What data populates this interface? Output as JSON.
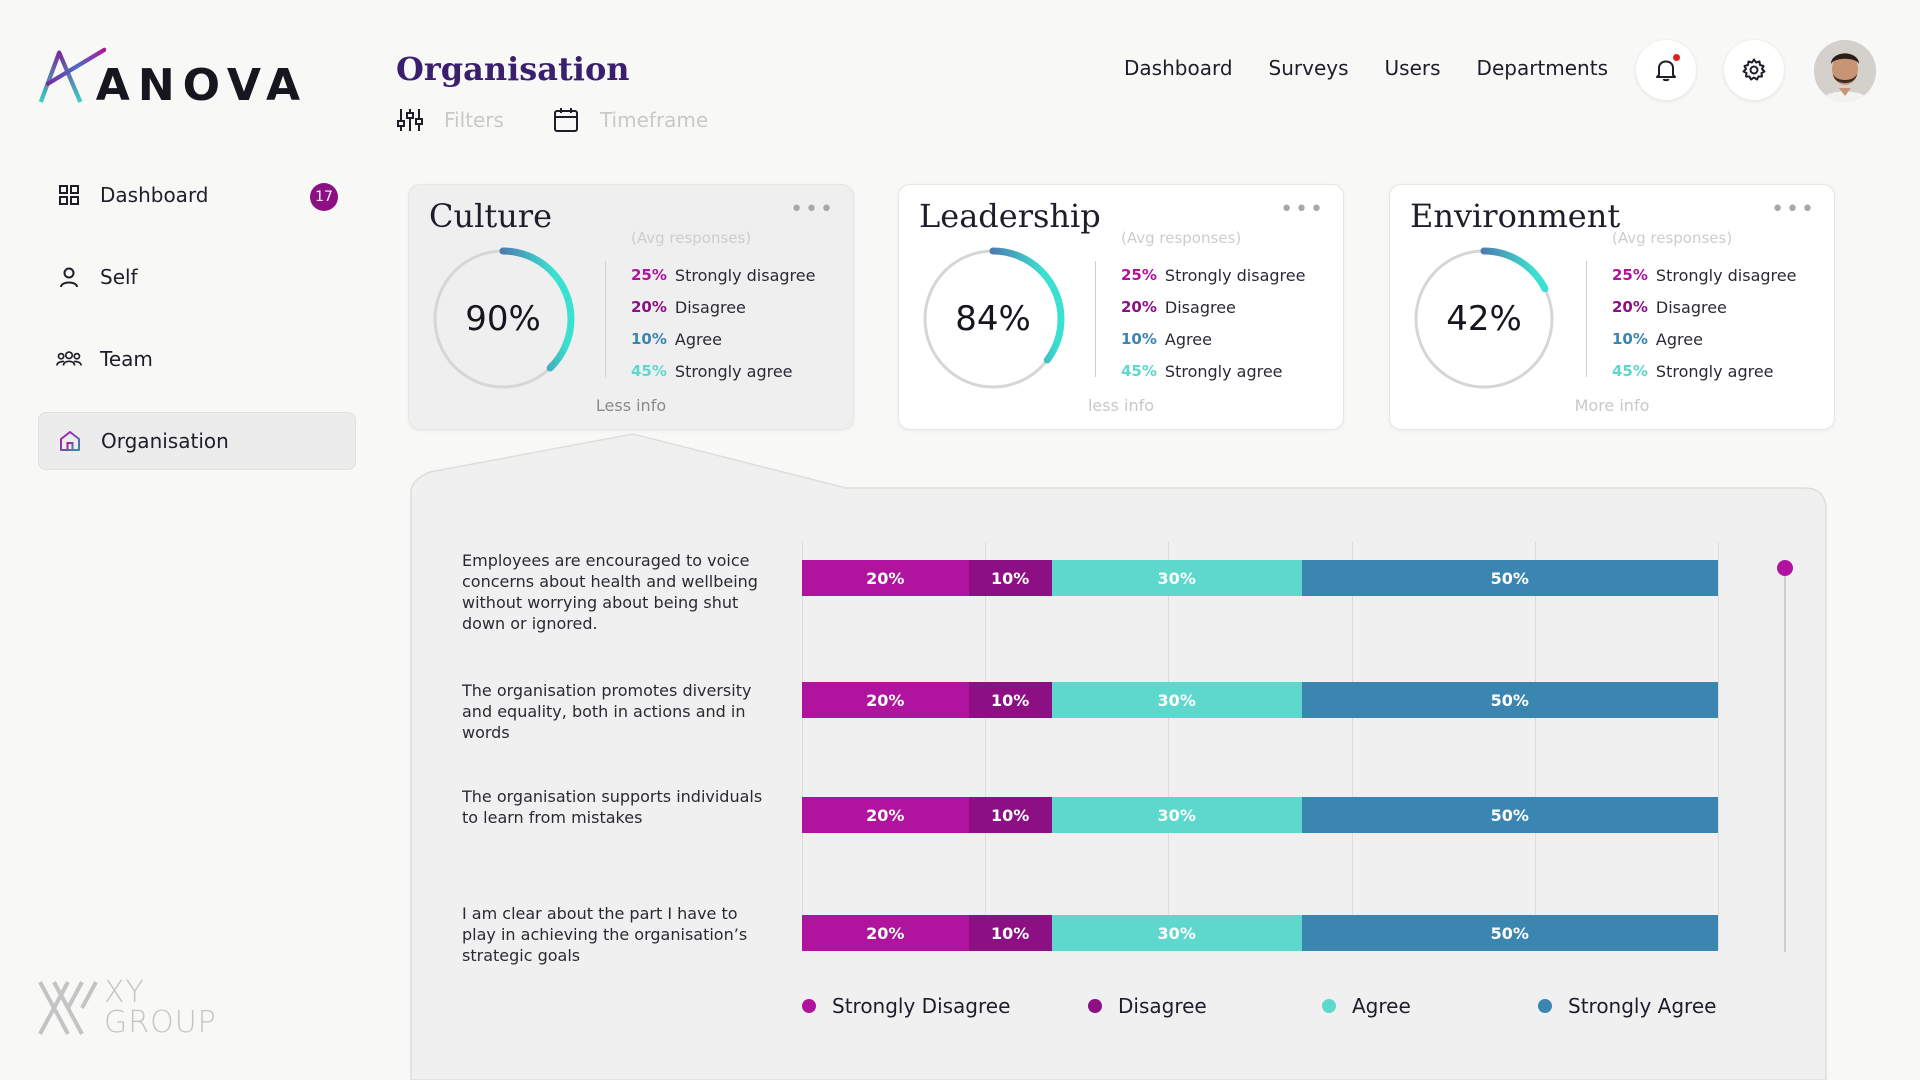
{
  "brand": {
    "name": "ANOVA",
    "footer_top": "XY",
    "footer_bottom": "GROUP"
  },
  "colors": {
    "strongly_disagree": "#b0149e",
    "disagree": "#8c1084",
    "agree": "#5ed8cc",
    "strongly_agree": "#3a86b0",
    "title": "#3a1f6e"
  },
  "sidebar": {
    "items": [
      {
        "label": "Dashboard",
        "icon": "grid-icon",
        "badge": "17"
      },
      {
        "label": "Self",
        "icon": "person-icon"
      },
      {
        "label": "Team",
        "icon": "team-icon"
      },
      {
        "label": "Organisation",
        "icon": "home-icon",
        "active": true
      }
    ]
  },
  "header": {
    "title": "Organisation",
    "filters_label": "Filters",
    "timeframe_label": "Timeframe",
    "nav": [
      "Dashboard",
      "Surveys",
      "Users",
      "Departments"
    ]
  },
  "cards": [
    {
      "title": "Culture",
      "value": "90%",
      "fraction": 0.9,
      "avg_label": "(Avg responses)",
      "stats": [
        {
          "pct": "25%",
          "label": "Strongly disagree"
        },
        {
          "pct": "20%",
          "label": "Disagree"
        },
        {
          "pct": "10%",
          "label": "Agree"
        },
        {
          "pct": "45%",
          "label": "Strongly agree"
        }
      ],
      "link": "Less info"
    },
    {
      "title": "Leadership",
      "value": "84%",
      "fraction": 0.84,
      "avg_label": "(Avg responses)",
      "stats": [
        {
          "pct": "25%",
          "label": "Strongly disagree"
        },
        {
          "pct": "20%",
          "label": "Disagree"
        },
        {
          "pct": "10%",
          "label": "Agree"
        },
        {
          "pct": "45%",
          "label": "Strongly agree"
        }
      ],
      "link": "less info"
    },
    {
      "title": "Environment",
      "value": "42%",
      "fraction": 0.42,
      "avg_label": "(Avg responses)",
      "stats": [
        {
          "pct": "25%",
          "label": "Strongly disagree"
        },
        {
          "pct": "20%",
          "label": "Disagree"
        },
        {
          "pct": "10%",
          "label": "Agree"
        },
        {
          "pct": "45%",
          "label": "Strongly agree"
        }
      ],
      "link": "More info"
    }
  ],
  "detail": {
    "questions": [
      {
        "text": "Employees are encouraged to voice concerns about health and wellbeing without worrying about being shut down or ignored.",
        "values": [
          20,
          10,
          30,
          50
        ]
      },
      {
        "text": "The organisation promotes diversity and equality, both in actions and in words",
        "values": [
          20,
          10,
          30,
          50
        ]
      },
      {
        "text": "The organisation supports individuals to learn from mistakes",
        "values": [
          20,
          10,
          30,
          50
        ]
      },
      {
        "text": "I am clear about the part I have to play in achieving the organisation’s strategic goals",
        "values": [
          20,
          10,
          30,
          50
        ]
      }
    ],
    "legend": [
      "Strongly Disagree",
      "Disagree",
      "Agree",
      "Strongly Agree"
    ]
  }
}
